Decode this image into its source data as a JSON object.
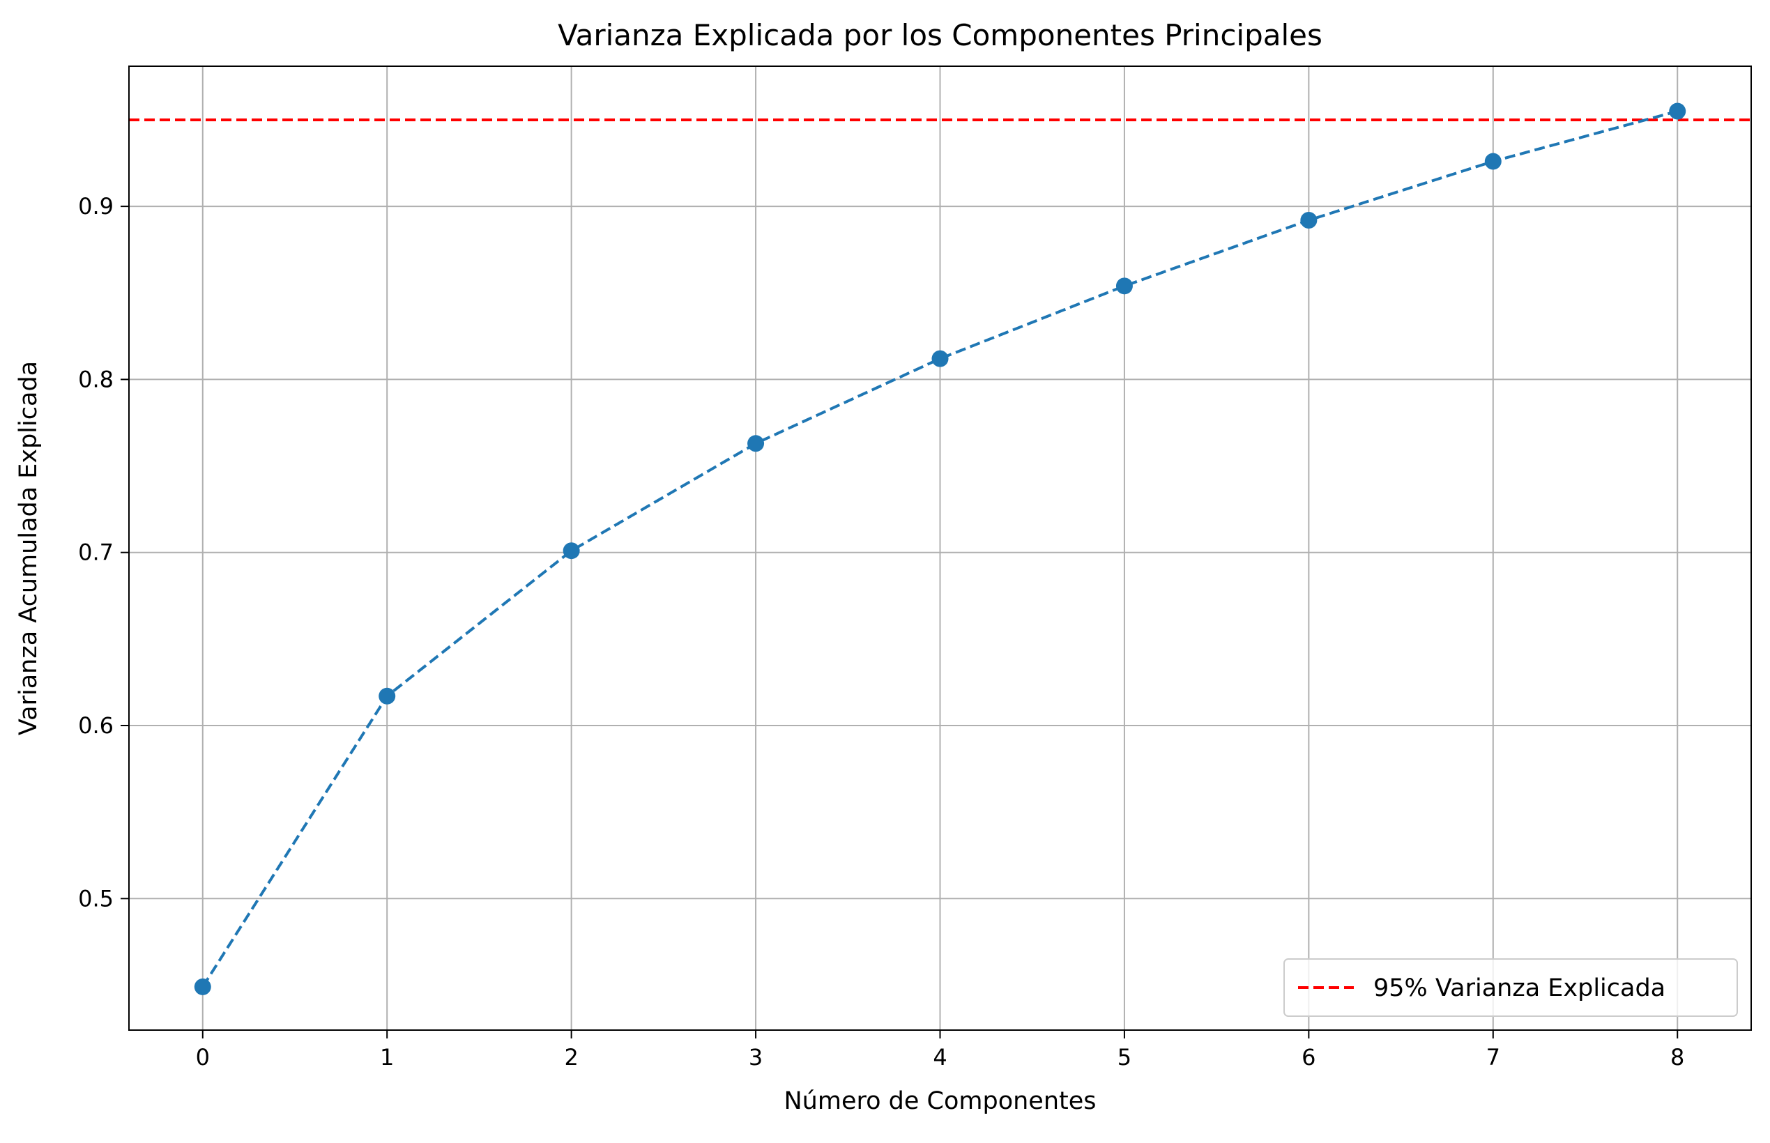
{
  "chart_data": {
    "type": "line",
    "title": "Varianza Explicada por los Componentes Principales",
    "xlabel": "Número de Componentes",
    "ylabel": "Varianza Acumulada Explicada",
    "x": [
      0,
      1,
      2,
      3,
      4,
      5,
      6,
      7,
      8
    ],
    "series": [
      {
        "values": [
          0.449,
          0.617,
          0.701,
          0.763,
          0.812,
          0.854,
          0.892,
          0.926,
          0.955
        ],
        "color": "#1f77b4",
        "line_style": "dashed",
        "marker": "circle"
      }
    ],
    "reference_line": {
      "name": "95% Varianza Explicada",
      "y": 0.95,
      "color": "#ff0000",
      "line_style": "dashed"
    },
    "xticks": [
      "0",
      "1",
      "2",
      "3",
      "4",
      "5",
      "6",
      "7",
      "8"
    ],
    "yticks": [
      "0.5",
      "0.6",
      "0.7",
      "0.8",
      "0.9"
    ],
    "xlim": [
      -0.4,
      8.4
    ],
    "ylim": [
      0.424,
      0.981
    ],
    "grid": true,
    "legend_position": "lower-right"
  }
}
